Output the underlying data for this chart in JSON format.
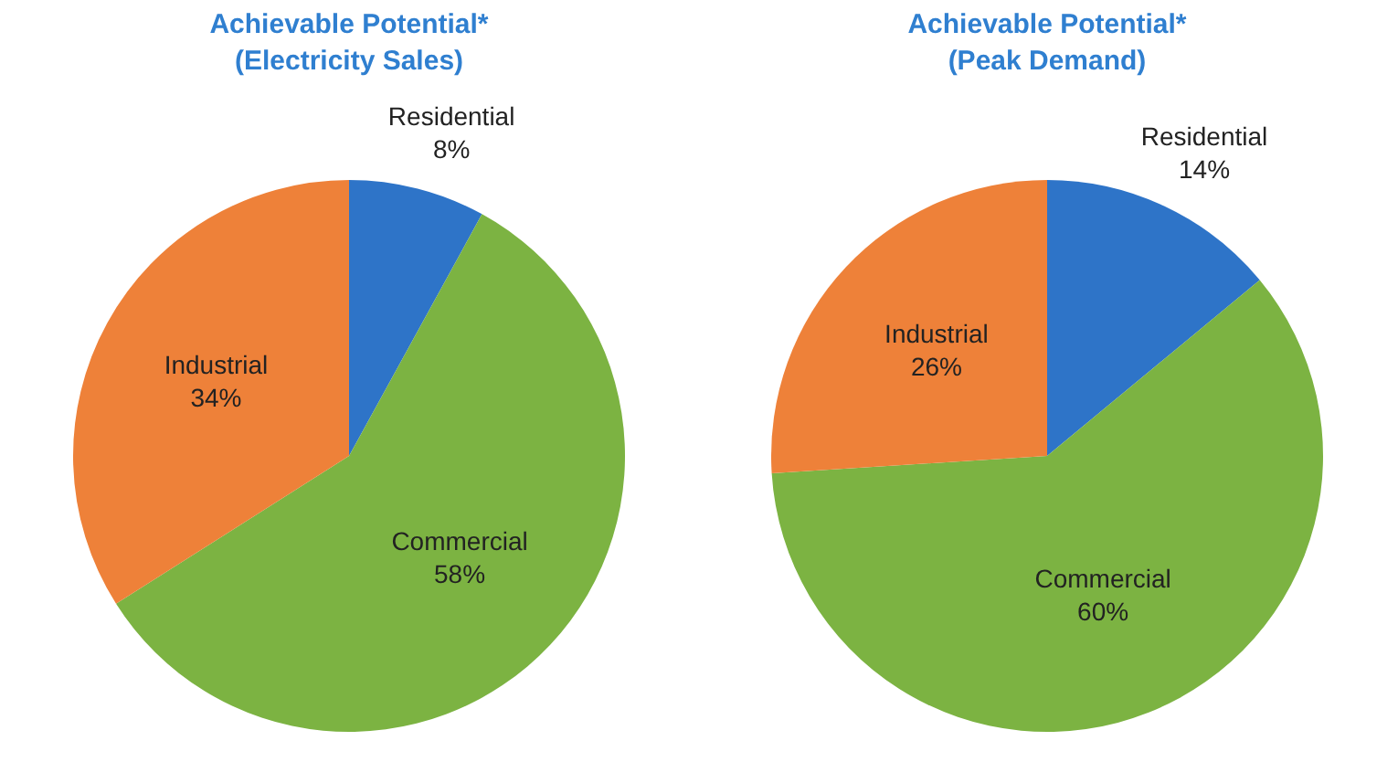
{
  "chart_data": [
    {
      "type": "pie",
      "title": "Achievable Potential*",
      "subtitle": "(Electricity Sales)",
      "categories": [
        "Residential",
        "Commercial",
        "Industrial"
      ],
      "values": [
        8,
        58,
        34
      ],
      "value_labels": [
        "8%",
        "58%",
        "34%"
      ],
      "colors": [
        "#2e74c8",
        "#7cb342",
        "#ee8139"
      ]
    },
    {
      "type": "pie",
      "title": "Achievable Potential*",
      "subtitle": "(Peak Demand)",
      "categories": [
        "Residential",
        "Commercial",
        "Industrial"
      ],
      "values": [
        14,
        60,
        26
      ],
      "value_labels": [
        "14%",
        "60%",
        "26%"
      ],
      "colors": [
        "#2e74c8",
        "#7cb342",
        "#ee8139"
      ]
    }
  ]
}
